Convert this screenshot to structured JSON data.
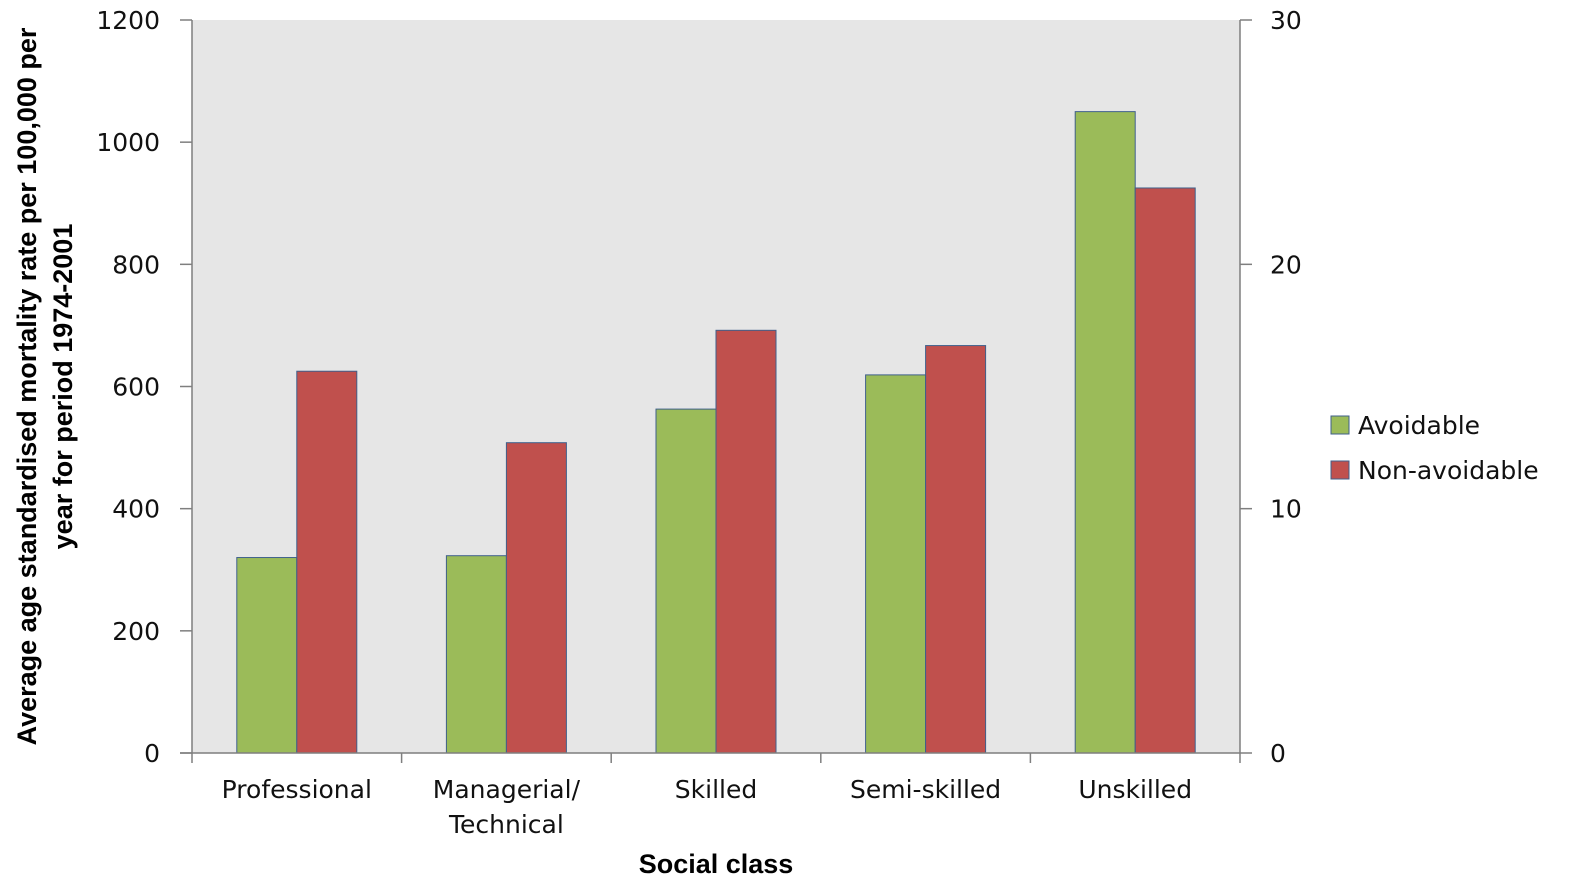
{
  "chart_data": {
    "type": "bar",
    "title": "",
    "xlabel": "Social class",
    "ylabel": "Average age standardised mortality rate per 100,000 per year for period 1974-2001",
    "ylabel_lines": [
      "Average age standardised mortality rate per 100,000 per",
      "year for period 1974-2001"
    ],
    "categories": [
      [
        "Professional"
      ],
      [
        "Managerial/",
        "Technical"
      ],
      [
        "Skilled"
      ],
      [
        "Semi-skilled"
      ],
      [
        "Unskilled"
      ]
    ],
    "ylim": [
      0,
      1200
    ],
    "yticks": [
      "0",
      "200",
      "400",
      "600",
      "800",
      "1000",
      "1200"
    ],
    "y2lim": [
      0,
      30
    ],
    "y2ticks": [
      "0",
      "10",
      "20",
      "30"
    ],
    "grid": false,
    "legend_position": "right",
    "series": [
      {
        "name": "Avoidable",
        "color": "#9BBB59",
        "values": [
          320,
          323,
          563,
          619,
          1050
        ]
      },
      {
        "name": "Non-avoidable",
        "color": "#C0504D",
        "values": [
          625,
          508,
          692,
          667,
          925
        ]
      }
    ],
    "plot_background": "#E6E6E6"
  }
}
